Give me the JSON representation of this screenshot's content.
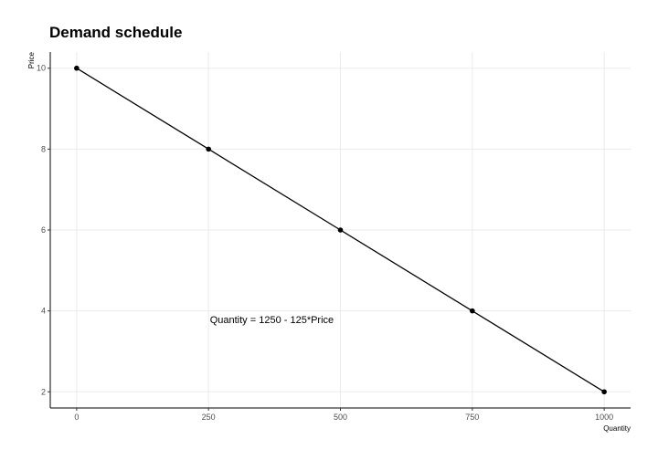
{
  "chart_data": {
    "type": "line",
    "title": "Demand schedule",
    "xlabel": "Quantity",
    "ylabel": "Price",
    "x": [
      0,
      250,
      500,
      750,
      1000
    ],
    "y": [
      10,
      8,
      6,
      4,
      2
    ],
    "xticks": [
      0,
      250,
      500,
      750,
      1000
    ],
    "yticks": [
      2,
      4,
      6,
      8,
      10
    ],
    "xlim": [
      -50,
      1050
    ],
    "ylim": [
      1.6,
      10.4
    ],
    "grid": true,
    "markers": true,
    "line_color": "#000000",
    "annotation": {
      "text": "Quantity = 1250 - 125*Price",
      "x": 370,
      "y": 3.7
    }
  }
}
